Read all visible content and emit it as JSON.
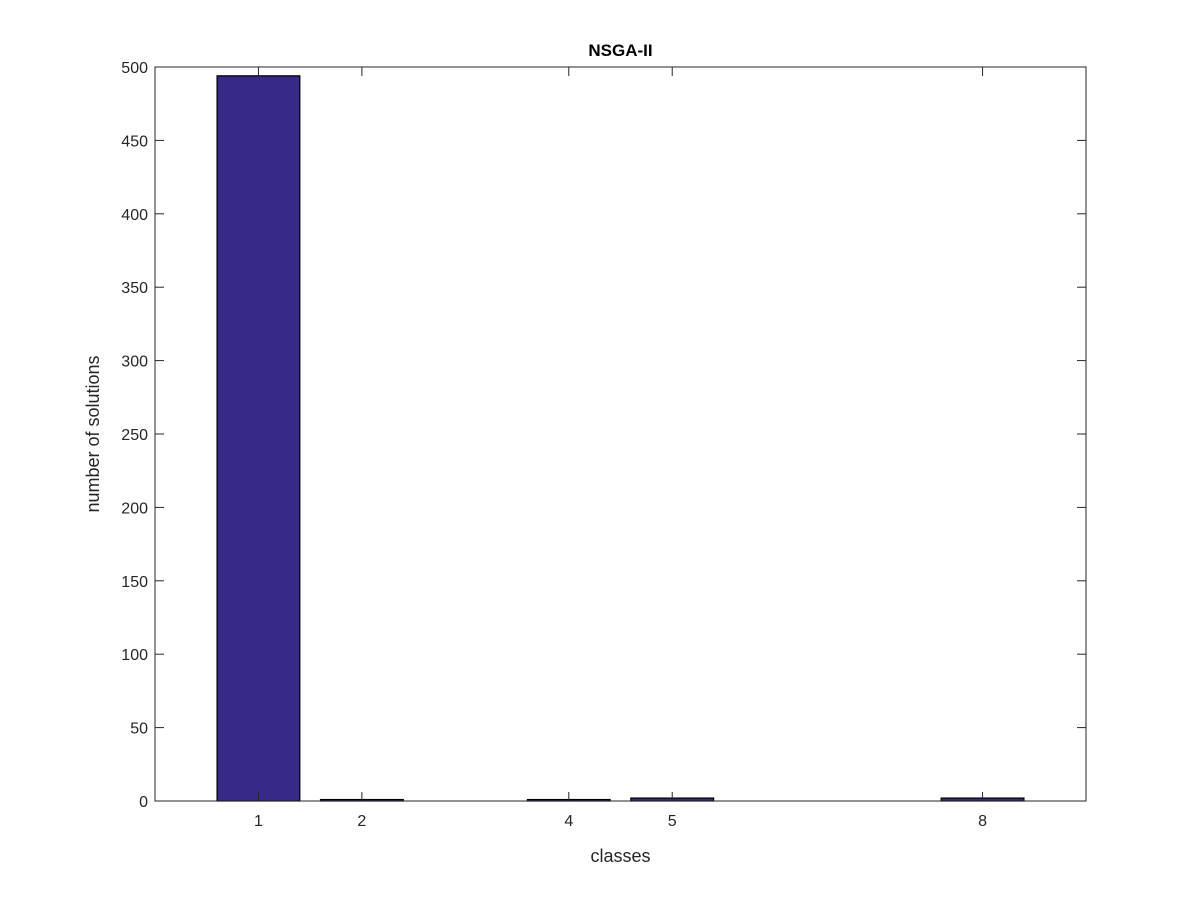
{
  "chart_data": {
    "type": "bar",
    "title": "NSGA-II",
    "xlabel": "classes",
    "ylabel": "number of solutions",
    "x": [
      1,
      2,
      4,
      5,
      8
    ],
    "values": [
      494,
      1,
      1,
      2,
      2
    ],
    "xlim": [
      0,
      9
    ],
    "ylim": [
      0,
      500
    ],
    "xticks": [
      "1",
      "2",
      "4",
      "5",
      "8"
    ],
    "yticks": [
      "0",
      "50",
      "100",
      "150",
      "200",
      "250",
      "300",
      "350",
      "400",
      "450",
      "500"
    ],
    "bar_color": "#352a87",
    "grid": false,
    "legend": "none"
  }
}
